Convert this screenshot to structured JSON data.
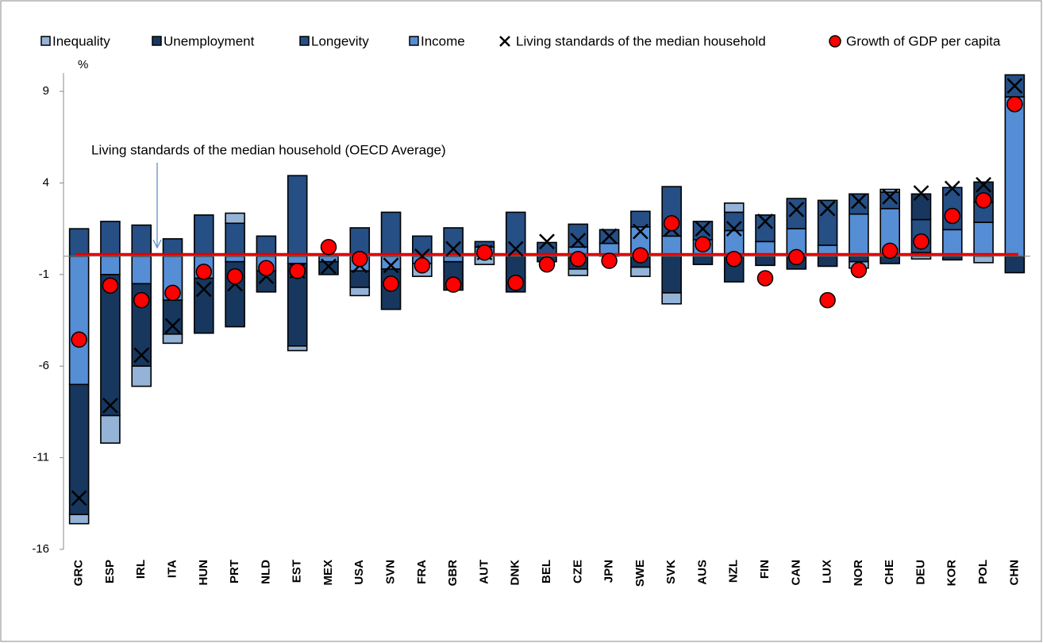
{
  "chart_data": {
    "type": "stacked-bar-markers",
    "y_label": "%",
    "ylim": [
      -16,
      10
    ],
    "yticks": [
      9,
      4,
      -1,
      -6,
      -11,
      -16
    ],
    "categories": [
      "GRC",
      "ESP",
      "IRL",
      "ITA",
      "HUN",
      "PRT",
      "NLD",
      "EST",
      "MEX",
      "USA",
      "SVN",
      "FRA",
      "GBR",
      "AUT",
      "DNK",
      "BEL",
      "CZE",
      "JPN",
      "SWE",
      "SVK",
      "AUS",
      "NZL",
      "FIN",
      "CAN",
      "LUX",
      "NOR",
      "CHE",
      "DEU",
      "KOR",
      "POL",
      "CHN"
    ],
    "series": [
      {
        "name": "Inequality",
        "color": "#95b3d7",
        "values": [
          -0.5,
          -1.5,
          -1.1,
          -0.5,
          0,
          0.55,
          0,
          -0.25,
          0,
          -0.45,
          0,
          -0.7,
          0,
          -0.45,
          0,
          0,
          -0.35,
          0,
          -0.5,
          -0.6,
          0,
          0.5,
          0,
          0,
          0,
          -0.35,
          0.15,
          -0.15,
          0,
          -0.35,
          0
        ]
      },
      {
        "name": "Unemployment",
        "color": "#17375e",
        "values": [
          -7.1,
          -7.7,
          -4.5,
          -1.85,
          -3.0,
          -3.55,
          -1.15,
          -4.5,
          -0.7,
          -0.9,
          -2.2,
          0,
          -1.55,
          0,
          -1.95,
          -0.3,
          -0.7,
          0,
          -0.6,
          -2.0,
          -0.45,
          -1.4,
          -0.5,
          -0.7,
          -0.55,
          -0.3,
          -0.4,
          1.4,
          -0.2,
          1.1,
          -0.9
        ]
      },
      {
        "name": "Longevity",
        "color": "#254f85",
        "values": [
          1.5,
          1.9,
          1.7,
          0.95,
          2.25,
          1.8,
          1.1,
          4.4,
          0,
          1.55,
          2.4,
          1.1,
          1.55,
          0.3,
          2.4,
          0.75,
          1.25,
          0.75,
          0.85,
          2.7,
          1.0,
          1.0,
          1.45,
          1.65,
          2.45,
          1.1,
          0.9,
          1.8,
          2.3,
          1.1,
          1.2
        ]
      },
      {
        "name": "Income",
        "color": "#558ed5",
        "values": [
          -7,
          -1.0,
          -1.5,
          -2.4,
          -1.2,
          -0.3,
          -0.8,
          -0.4,
          -0.3,
          -0.8,
          -0.7,
          -0.4,
          -0.3,
          0.5,
          0,
          0,
          0.5,
          0.7,
          1.6,
          1.1,
          0.9,
          1.4,
          0.8,
          1.5,
          0.6,
          2.3,
          2.6,
          0.2,
          1.45,
          1.85,
          8.7
        ]
      }
    ],
    "markers": [
      {
        "name": "Living standards of the median household",
        "shape": "x",
        "color": "#000000",
        "values": [
          -13.2,
          -8.15,
          -5.4,
          -3.8,
          -1.8,
          -1.5,
          -1.1,
          -0.8,
          -0.55,
          -0.5,
          -0.5,
          0,
          0.4,
          0.2,
          0.4,
          0.8,
          0.85,
          1.1,
          1.35,
          1.5,
          1.5,
          1.5,
          1.9,
          2.55,
          2.6,
          3.0,
          3.25,
          3.45,
          3.7,
          3.9,
          9.3
        ]
      },
      {
        "name": "Growth of GDP per capita",
        "shape": "circle",
        "color": "#ff0000",
        "values": [
          -4.55,
          -1.6,
          -2.4,
          -2.0,
          -0.85,
          -1.1,
          -0.65,
          -0.8,
          0.5,
          -0.15,
          -1.5,
          -0.5,
          -1.55,
          0.2,
          -1.45,
          -0.45,
          -0.15,
          -0.25,
          0.05,
          1.8,
          0.65,
          -0.15,
          -1.2,
          -0.05,
          -2.4,
          -0.75,
          0.3,
          0.8,
          2.2,
          3.05,
          8.3
        ]
      }
    ],
    "reference_line": {
      "label": "Living standards of the median household (OECD Average)",
      "value": 0.1,
      "color": "#e00000"
    }
  }
}
